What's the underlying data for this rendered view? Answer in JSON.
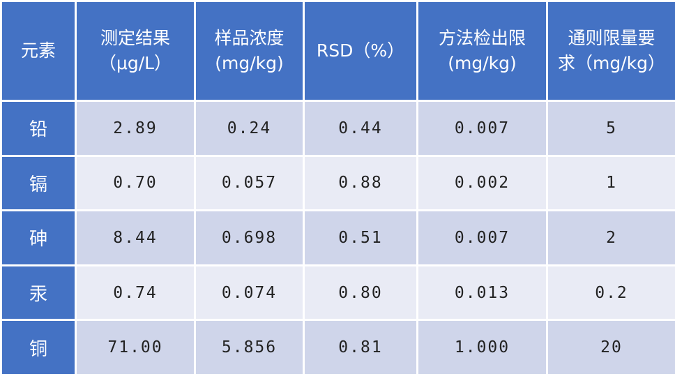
{
  "table": {
    "header": [
      "元素",
      "测定结果\n（μg/L）",
      "样品浓度\n(mg/kg)",
      "RSD（%）",
      "方法检出限\n(mg/kg)",
      "通则限量要\n求（mg/kg）"
    ],
    "rows": [
      [
        "铅",
        "2.89",
        "0.24",
        "0.44",
        "0.007",
        "5"
      ],
      [
        "镉",
        "0.70",
        "0.057",
        "0.88",
        "0.002",
        "1"
      ],
      [
        "砷",
        "8.44",
        "0.698",
        "0.51",
        "0.007",
        "2"
      ],
      [
        "汞",
        "0.74",
        "0.074",
        "0.80",
        "0.013",
        "0.2"
      ],
      [
        "铜",
        "71.00",
        "5.856",
        "0.81",
        "1.000",
        "20"
      ]
    ]
  }
}
